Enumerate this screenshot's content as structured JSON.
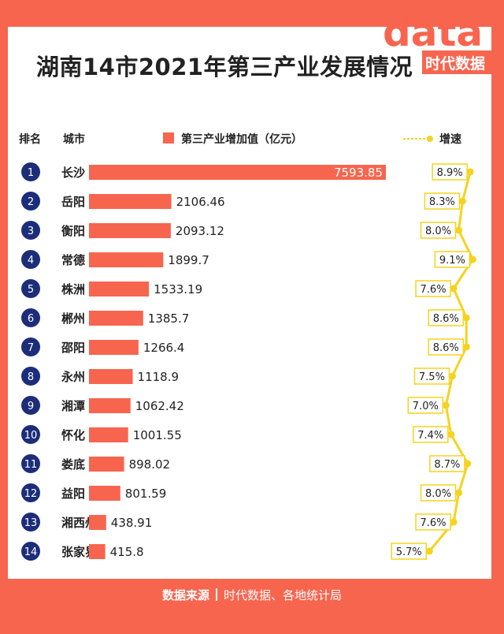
{
  "title": "湖南14市2021年第三产业发展情况",
  "logo": {
    "text": "data",
    "subtext": "时代数据"
  },
  "headers": {
    "rank": "排名",
    "city": "城市",
    "value": "第三产业增加值（亿元）",
    "rate": "增速"
  },
  "colors": {
    "accent": "#f7654f",
    "rank_badge": "#1c2d7a",
    "rate_line": "#f5d31e"
  },
  "footer": {
    "label": "数据来源",
    "source": "时代数据、各地统计局"
  },
  "chart_data": {
    "type": "bar",
    "orientation": "horizontal",
    "ranks": [
      "1",
      "2",
      "3",
      "4",
      "5",
      "6",
      "7",
      "8",
      "9",
      "10",
      "11",
      "12",
      "13",
      "14"
    ],
    "categories": [
      "长沙",
      "岳阳",
      "衡阳",
      "常德",
      "株洲",
      "郴州",
      "邵阳",
      "永州",
      "湘潭",
      "怀化",
      "娄底",
      "益阳",
      "湘西州",
      "张家界"
    ],
    "values": [
      7593.85,
      2106.46,
      2093.12,
      1899.7,
      1533.19,
      1385.7,
      1266.4,
      1118.9,
      1062.42,
      1001.55,
      898.02,
      801.59,
      438.91,
      415.8
    ],
    "value_labels": [
      "7593.85",
      "2106.46",
      "2093.12",
      "1899.7",
      "1533.19",
      "1385.7",
      "1266.4",
      "1118.9",
      "1062.42",
      "1001.55",
      "898.02",
      "801.59",
      "438.91",
      "415.8"
    ],
    "rate_series": {
      "name": "增速",
      "values": [
        8.9,
        8.3,
        8.0,
        9.1,
        7.6,
        8.6,
        8.6,
        7.5,
        7.0,
        7.4,
        8.7,
        8.0,
        7.6,
        5.7
      ],
      "labels": [
        "8.9%",
        "8.3%",
        "8.0%",
        "9.1%",
        "7.6%",
        "8.6%",
        "8.6%",
        "7.5%",
        "7.0%",
        "7.4%",
        "8.7%",
        "8.0%",
        "7.6%",
        "5.7%"
      ]
    }
  }
}
